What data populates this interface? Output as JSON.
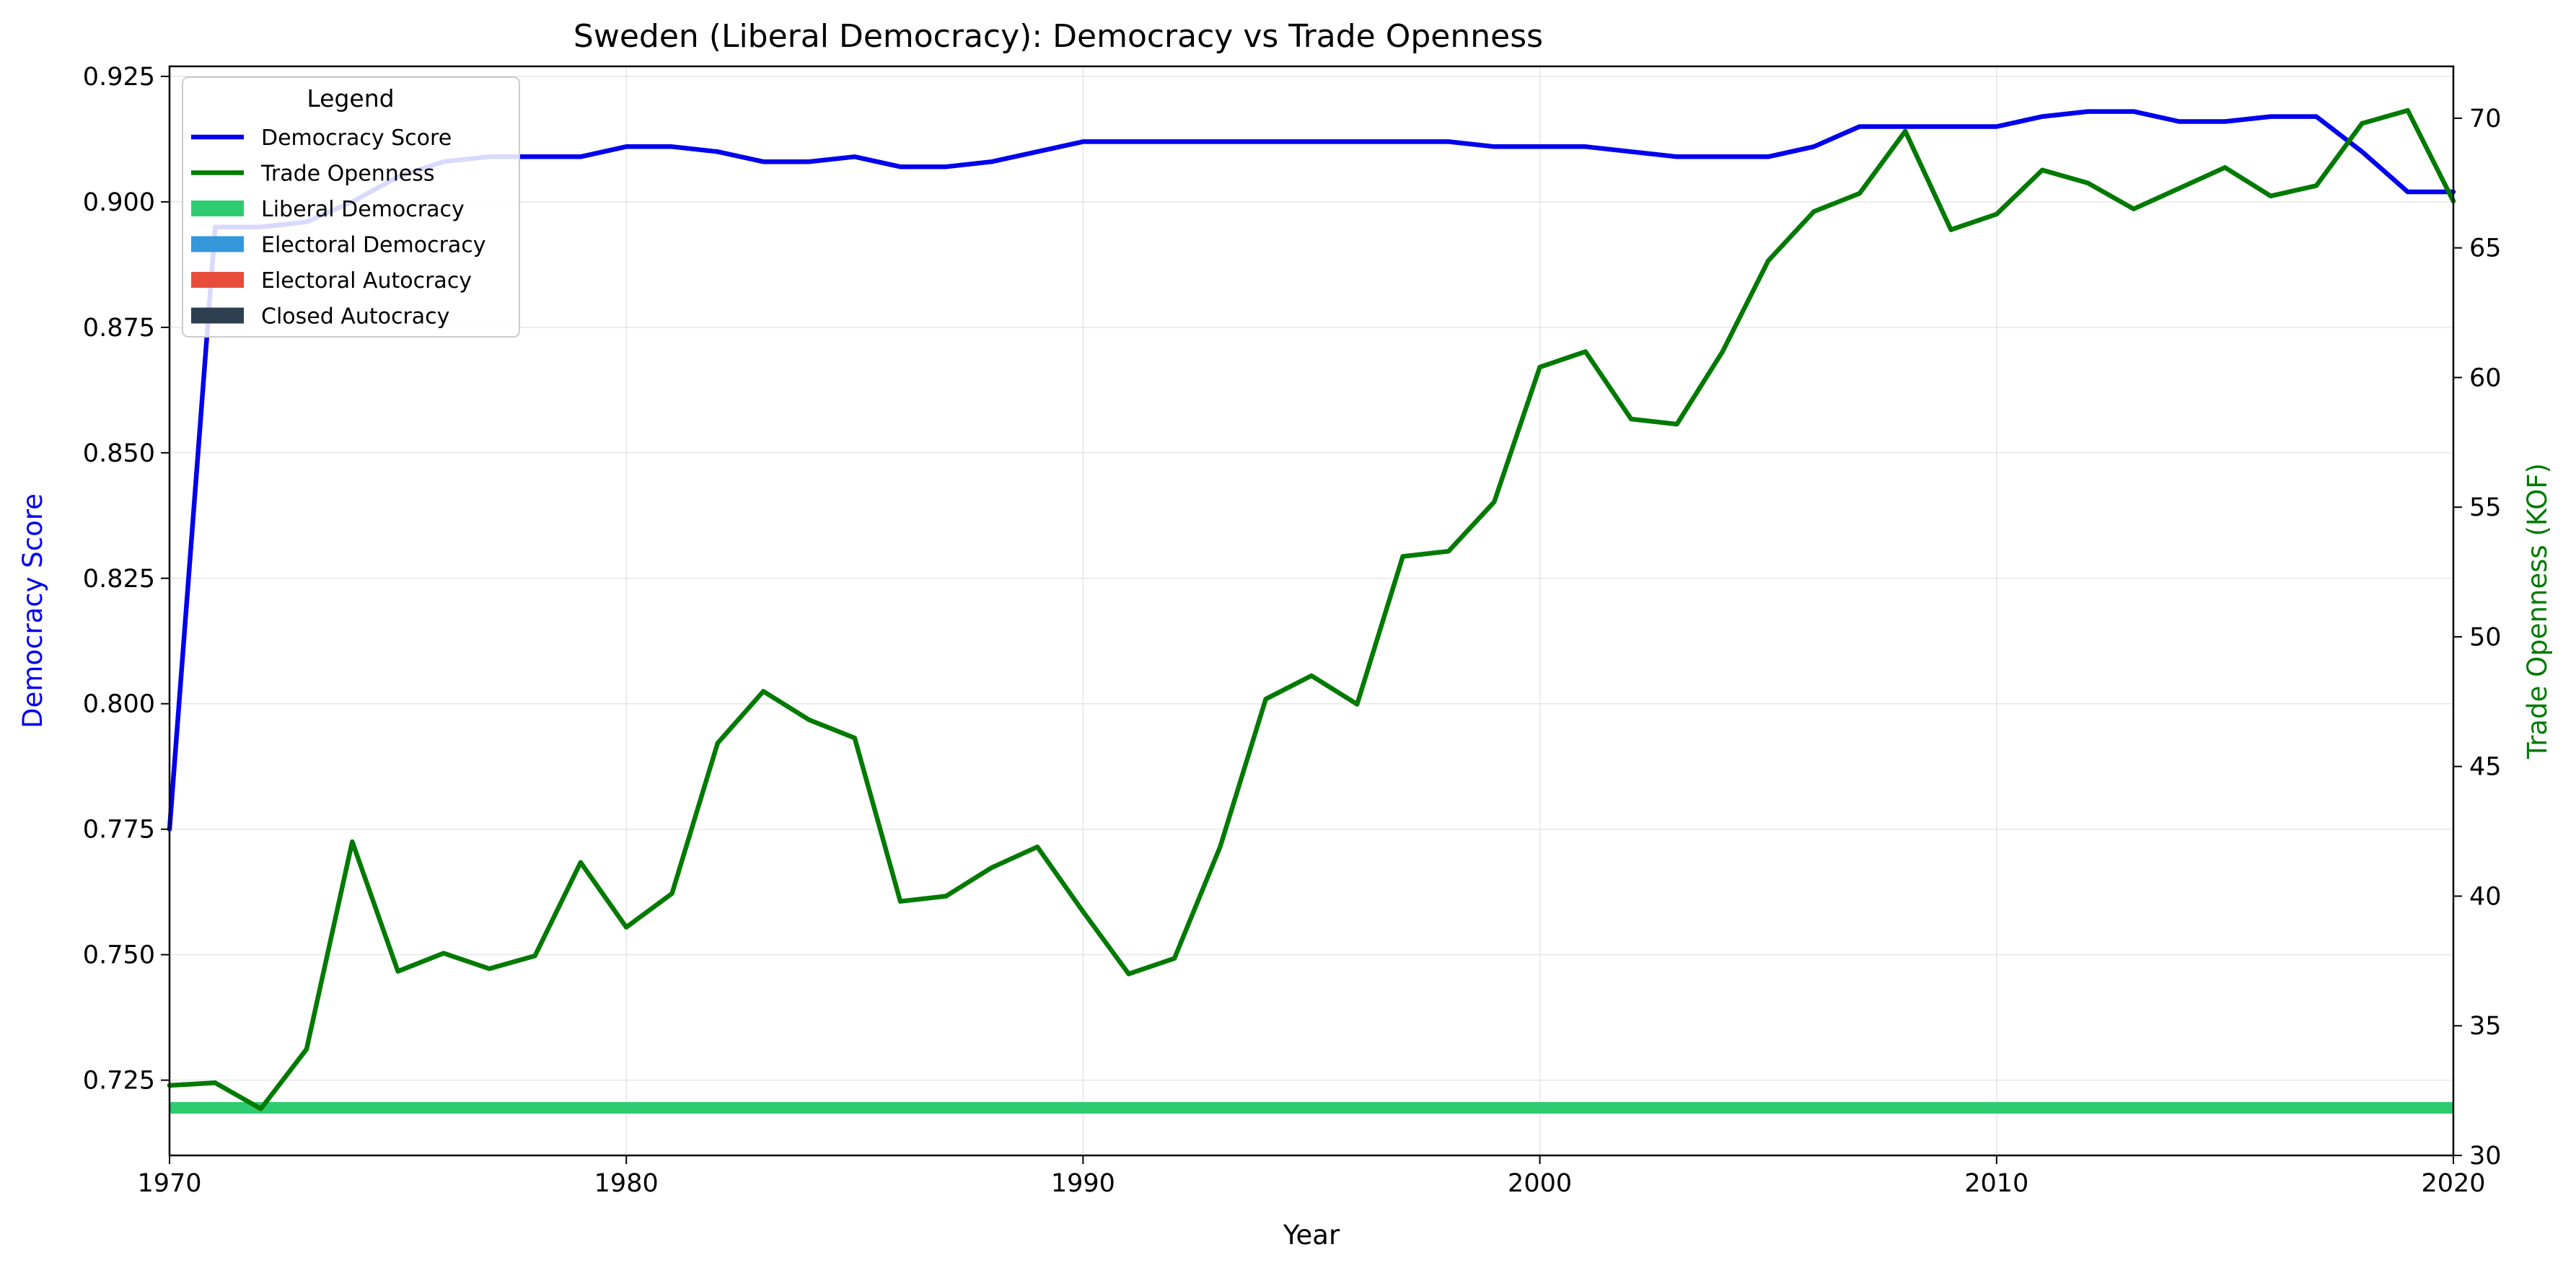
{
  "chart_data": {
    "type": "line",
    "title": "Sweden (Liberal Democracy): Democracy vs Trade Openness",
    "xlabel": "Year",
    "ylabel": "Democracy Score",
    "y2label": "Trade Openness (KOF)",
    "xlim": [
      1970,
      2020
    ],
    "ylim": [
      0.71,
      0.927
    ],
    "y2lim": [
      30,
      72
    ],
    "x_ticks": [
      1970,
      1980,
      1990,
      2000,
      2010,
      2020
    ],
    "y_ticks": [
      "0.725",
      "0.750",
      "0.775",
      "0.800",
      "0.825",
      "0.850",
      "0.875",
      "0.900",
      "0.925"
    ],
    "y2_ticks": [
      "30",
      "35",
      "40",
      "45",
      "50",
      "55",
      "60",
      "65",
      "70"
    ],
    "grid": true,
    "legend": {
      "title": "Legend",
      "placement": "top-left",
      "entries": [
        {
          "label": "Democracy Score",
          "kind": "line",
          "color": "#0000ee"
        },
        {
          "label": "Trade Openness",
          "kind": "line",
          "color": "#007a00"
        },
        {
          "label": "Liberal Democracy",
          "kind": "patch",
          "color": "#2ecc71"
        },
        {
          "label": "Electoral Democracy",
          "kind": "patch",
          "color": "#3498db"
        },
        {
          "label": "Electoral Autocracy",
          "kind": "patch",
          "color": "#e74c3c"
        },
        {
          "label": "Closed Autocracy",
          "kind": "patch",
          "color": "#2c3e50"
        }
      ]
    },
    "regime_band": {
      "label": "Liberal Democracy",
      "color": "#2ecc71",
      "from": 1970,
      "to": 2020
    },
    "x": [
      1970,
      1971,
      1972,
      1973,
      1974,
      1975,
      1976,
      1977,
      1978,
      1979,
      1980,
      1981,
      1982,
      1983,
      1984,
      1985,
      1986,
      1987,
      1988,
      1989,
      1990,
      1991,
      1992,
      1993,
      1994,
      1995,
      1996,
      1997,
      1998,
      1999,
      2000,
      2001,
      2002,
      2003,
      2004,
      2005,
      2006,
      2007,
      2008,
      2009,
      2010,
      2011,
      2012,
      2013,
      2014,
      2015,
      2016,
      2017,
      2018,
      2019,
      2020
    ],
    "series": [
      {
        "name": "Democracy Score",
        "axis": "left",
        "color": "#0000ee",
        "values": [
          0.775,
          0.895,
          0.895,
          0.896,
          0.9,
          0.905,
          0.908,
          0.909,
          0.909,
          0.909,
          0.911,
          0.911,
          0.91,
          0.908,
          0.908,
          0.909,
          0.907,
          0.907,
          0.908,
          0.91,
          0.912,
          0.912,
          0.912,
          0.912,
          0.912,
          0.912,
          0.912,
          0.912,
          0.912,
          0.911,
          0.911,
          0.911,
          0.91,
          0.909,
          0.909,
          0.909,
          0.911,
          0.915,
          0.915,
          0.915,
          0.915,
          0.917,
          0.918,
          0.918,
          0.916,
          0.916,
          0.917,
          0.917,
          0.91,
          0.902,
          0.902
        ]
      },
      {
        "name": "Trade Openness",
        "axis": "right",
        "color": "#007a00",
        "values": [
          32.7,
          32.8,
          31.8,
          34.1,
          42.1,
          37.1,
          37.8,
          37.2,
          37.7,
          41.3,
          38.8,
          40.1,
          45.9,
          47.9,
          46.8,
          46.1,
          39.8,
          40.0,
          41.1,
          41.9,
          39.4,
          37.0,
          37.6,
          41.9,
          47.6,
          48.5,
          47.4,
          53.1,
          53.3,
          55.2,
          60.4,
          61.0,
          58.4,
          58.2,
          61.0,
          64.5,
          66.4,
          67.1,
          69.5,
          65.7,
          66.3,
          68.0,
          67.5,
          66.5,
          67.3,
          68.1,
          67.0,
          67.4,
          69.8,
          70.3,
          66.8
        ]
      }
    ]
  }
}
